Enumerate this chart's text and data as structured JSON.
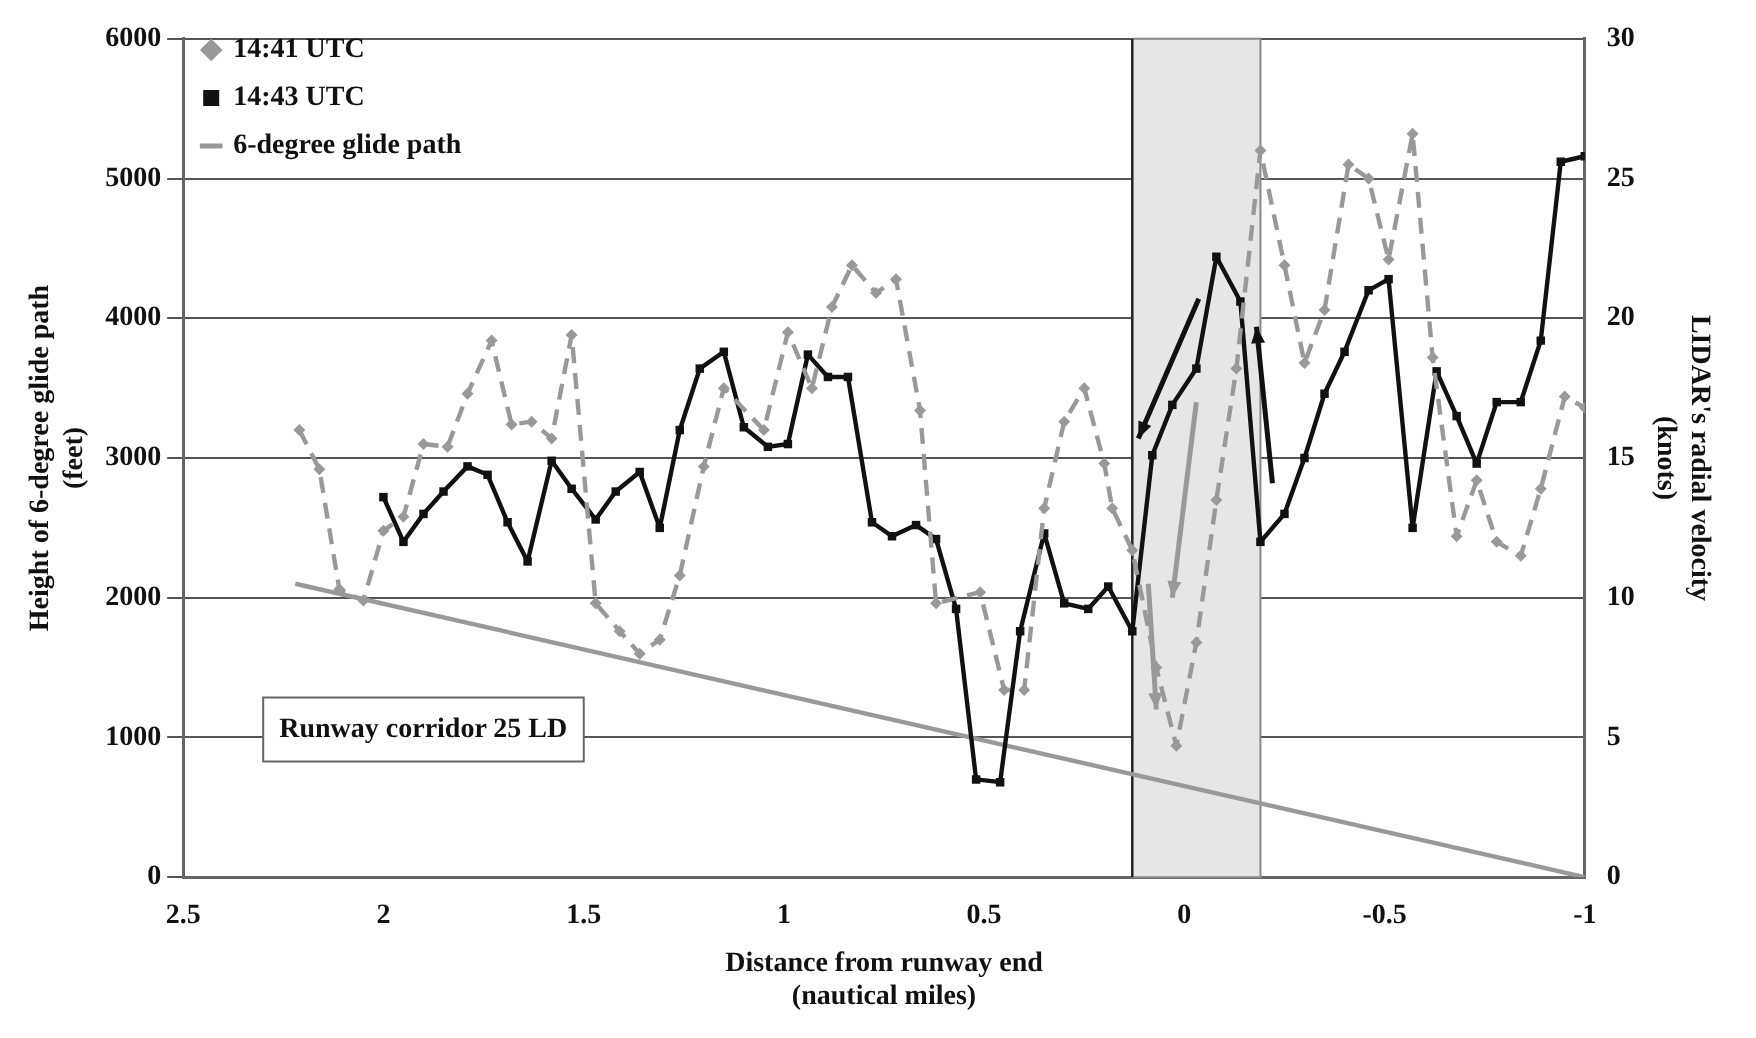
{
  "chart_data": {
    "type": "line",
    "xlabel": "Distance from runway end (nautical miles)",
    "ylabel": "Height of 6-degree glide path (feet)",
    "y2label": "LIDAR's radial velocity (knots)",
    "xlim": [
      2.5,
      -1
    ],
    "xticks": [
      2.5,
      2,
      1.5,
      1,
      0.5,
      0,
      -0.5,
      -1
    ],
    "ylim": [
      0,
      6000
    ],
    "yticks": [
      0,
      1000,
      2000,
      3000,
      4000,
      5000,
      6000
    ],
    "y2lim": [
      0,
      30
    ],
    "y2ticks": [
      0,
      5,
      10,
      15,
      20,
      25,
      30
    ],
    "grid": "y",
    "legend": "top left",
    "annotations": [
      "Runway corridor 25 LD"
    ],
    "bands": [
      {
        "axis": "x",
        "from": 0.13,
        "to": -0.19,
        "color": "#e6e6e6"
      }
    ],
    "ref_lines": [
      {
        "axis": "x",
        "value": 0.13,
        "color": "#222222"
      }
    ],
    "series": [
      {
        "name": "14:41 UTC",
        "color": "#999999",
        "axis": "y2",
        "marker": "diamond",
        "line_style": "dashed",
        "x": [
          2.21,
          2.16,
          2.11,
          2.05,
          2.0,
          1.95,
          1.9,
          1.84,
          1.79,
          1.73,
          1.68,
          1.63,
          1.58,
          1.53,
          1.47,
          1.41,
          1.36,
          1.31,
          1.26,
          1.2,
          1.15,
          1.05,
          0.99,
          0.93,
          0.88,
          0.83,
          0.77,
          0.72,
          0.66,
          0.62,
          0.51,
          0.45,
          0.4,
          0.35,
          0.3,
          0.25,
          0.2,
          0.18,
          0.13,
          0.07,
          0.02,
          -0.03,
          -0.08,
          -0.13,
          -0.19,
          -0.25,
          -0.3,
          -0.35,
          -0.41,
          -0.46,
          -0.51,
          -0.57,
          -0.62,
          -0.68,
          -0.73,
          -0.78,
          -0.84,
          -0.89,
          -0.95,
          -1.0
        ],
        "values": [
          16.0,
          14.6,
          10.3,
          9.9,
          12.4,
          12.9,
          15.5,
          15.4,
          17.3,
          19.2,
          16.2,
          16.3,
          15.7,
          19.4,
          9.8,
          8.8,
          8.0,
          8.5,
          10.8,
          14.7,
          17.5,
          16.0,
          19.5,
          17.5,
          20.4,
          21.9,
          20.9,
          21.4,
          16.7,
          9.8,
          10.2,
          6.7,
          6.7,
          13.2,
          16.3,
          17.5,
          14.8,
          13.2,
          11.7,
          7.5,
          4.7,
          8.4,
          13.5,
          18.2,
          26.0,
          21.9,
          18.4,
          20.3,
          25.5,
          25.0,
          22.1,
          26.6,
          18.6,
          12.2,
          14.2,
          12.0,
          11.5,
          13.9,
          17.2,
          16.8
        ]
      },
      {
        "name": "14:43 UTC",
        "color": "#111111",
        "axis": "y2",
        "marker": "square",
        "line_style": "solid",
        "x": [
          2.0,
          1.95,
          1.9,
          1.85,
          1.79,
          1.74,
          1.69,
          1.64,
          1.58,
          1.53,
          1.47,
          1.42,
          1.36,
          1.31,
          1.26,
          1.21,
          1.15,
          1.1,
          1.04,
          0.99,
          0.94,
          0.89,
          0.84,
          0.78,
          0.73,
          0.67,
          0.62,
          0.57,
          0.52,
          0.46,
          0.41,
          0.35,
          0.3,
          0.24,
          0.19,
          0.13,
          0.08,
          0.03,
          -0.03,
          -0.08,
          -0.14,
          -0.19,
          -0.25,
          -0.3,
          -0.35,
          -0.4,
          -0.46,
          -0.51,
          -0.57,
          -0.63,
          -0.68,
          -0.73,
          -0.78,
          -0.84,
          -0.89,
          -0.94,
          -1.0
        ],
        "values": [
          13.6,
          12.0,
          13.0,
          13.8,
          14.7,
          14.4,
          12.7,
          11.3,
          14.9,
          13.9,
          12.8,
          13.8,
          14.5,
          12.5,
          16.0,
          18.2,
          18.8,
          16.1,
          15.4,
          15.5,
          18.7,
          17.9,
          17.9,
          12.7,
          12.2,
          12.6,
          12.1,
          9.6,
          3.5,
          3.4,
          8.8,
          12.3,
          9.8,
          9.6,
          10.4,
          8.8,
          15.1,
          16.9,
          18.2,
          22.2,
          20.6,
          12.0,
          13.0,
          15.0,
          17.3,
          18.8,
          21.0,
          21.4,
          12.5,
          18.1,
          16.5,
          14.8,
          17.0,
          17.0,
          19.2,
          25.6,
          25.8
        ]
      },
      {
        "name": "6-degree glide path",
        "color": "#999999",
        "axis": "y",
        "marker": "none",
        "line_style": "solid",
        "x": [
          2.22,
          -1.0
        ],
        "values": [
          2100,
          0
        ]
      }
    ]
  }
}
